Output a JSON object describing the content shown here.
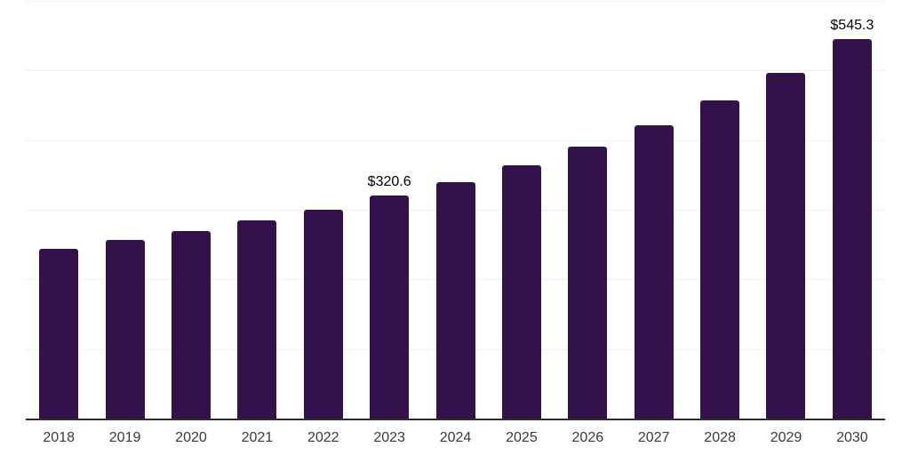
{
  "chart_data": {
    "type": "bar",
    "title": "",
    "xlabel": "",
    "ylabel": "",
    "categories": [
      "2018",
      "2019",
      "2020",
      "2021",
      "2022",
      "2023",
      "2024",
      "2025",
      "2026",
      "2027",
      "2028",
      "2029",
      "2030"
    ],
    "values": [
      243.6,
      256.4,
      269.3,
      284.2,
      300.1,
      320.6,
      339.9,
      363.4,
      390.3,
      421.2,
      456.7,
      496.9,
      545.3
    ],
    "data_labels": {
      "2023": "$320.6",
      "2030": "$545.3"
    },
    "ylim": [
      0,
      600
    ],
    "grid_step": 100,
    "grid": true,
    "legend": false,
    "bar_color": "#33114B",
    "grid_color": "#efeff1",
    "axis_color": "#2d2d2d",
    "value_label_color": "#000000",
    "tick_label_color": "#3a3a3a"
  }
}
